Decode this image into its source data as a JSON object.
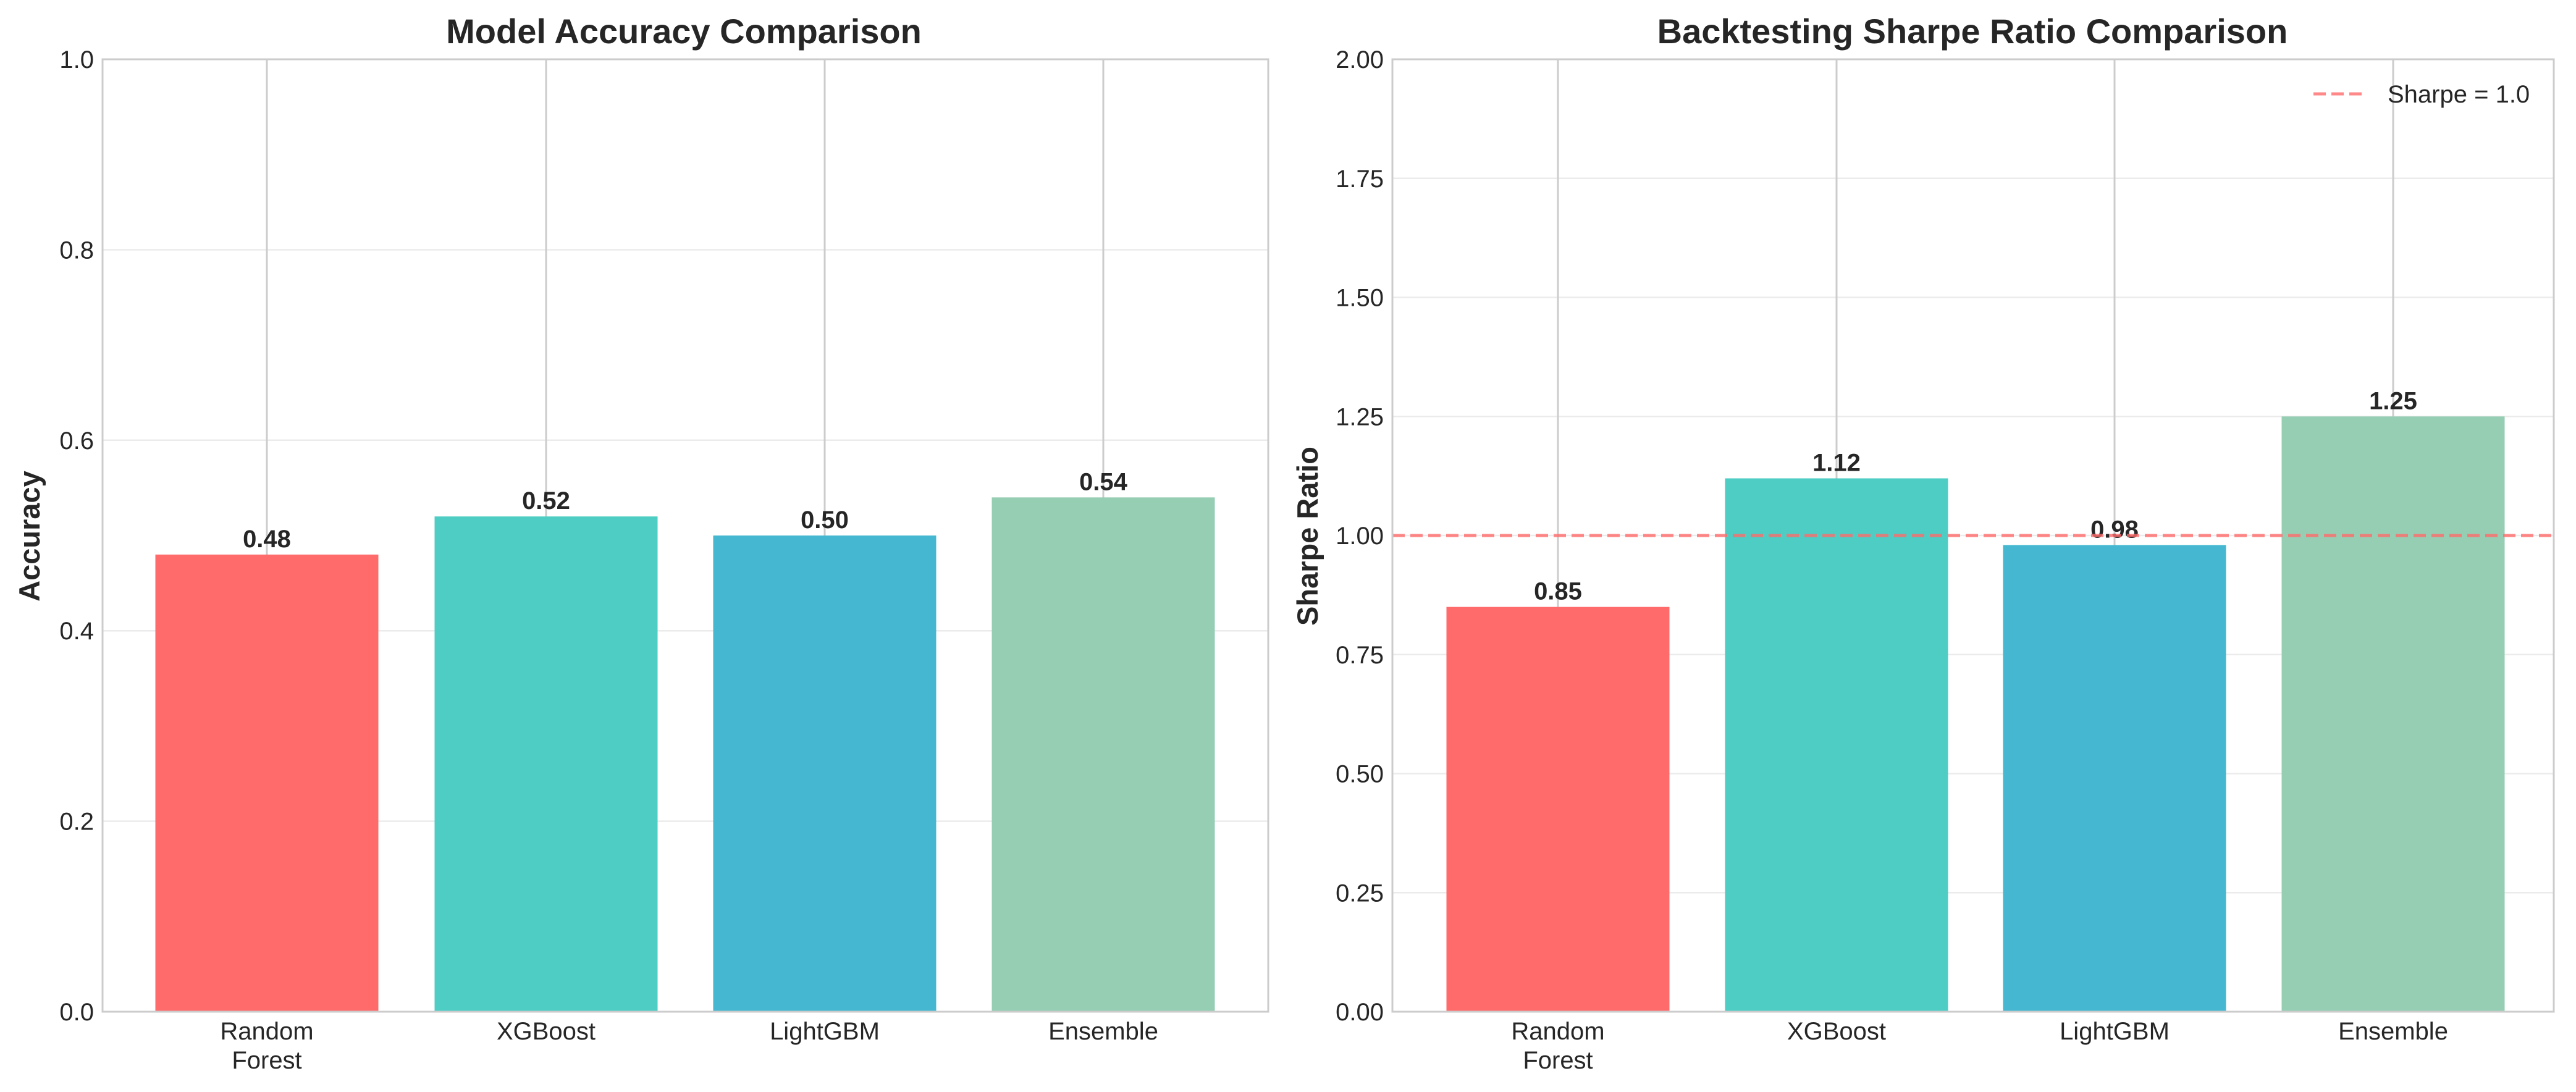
{
  "chart_data": [
    {
      "type": "bar",
      "title": "Model Accuracy Comparison",
      "xlabel": "",
      "ylabel": "Accuracy",
      "categories": [
        "Random Forest",
        "XGBoost",
        "LightGBM",
        "Ensemble"
      ],
      "category_lines": [
        [
          "Random",
          "Forest"
        ],
        [
          "XGBoost"
        ],
        [
          "LightGBM"
        ],
        [
          "Ensemble"
        ]
      ],
      "values": [
        0.48,
        0.52,
        0.5,
        0.54
      ],
      "value_labels": [
        "0.48",
        "0.52",
        "0.50",
        "0.54"
      ],
      "colors": [
        "#FF6B6B",
        "#4ECDC4",
        "#45B7D1",
        "#96CEB4"
      ],
      "ylim": [
        0,
        1
      ],
      "yticks": [
        0,
        0.2,
        0.4,
        0.6,
        0.8,
        1.0
      ],
      "ytick_labels": [
        "0.0",
        "0.2",
        "0.4",
        "0.6",
        "0.8",
        "1.0"
      ],
      "grid": true
    },
    {
      "type": "bar",
      "title": "Backtesting Sharpe Ratio Comparison",
      "xlabel": "",
      "ylabel": "Sharpe Ratio",
      "categories": [
        "Random Forest",
        "XGBoost",
        "LightGBM",
        "Ensemble"
      ],
      "category_lines": [
        [
          "Random",
          "Forest"
        ],
        [
          "XGBoost"
        ],
        [
          "LightGBM"
        ],
        [
          "Ensemble"
        ]
      ],
      "values": [
        0.85,
        1.12,
        0.98,
        1.25
      ],
      "value_labels": [
        "0.85",
        "1.12",
        "0.98",
        "1.25"
      ],
      "colors": [
        "#FF6B6B",
        "#4ECDC4",
        "#45B7D1",
        "#96CEB4"
      ],
      "ylim": [
        0,
        2
      ],
      "yticks": [
        0,
        0.25,
        0.5,
        0.75,
        1.0,
        1.25,
        1.5,
        1.75,
        2.0
      ],
      "ytick_labels": [
        "0.00",
        "0.25",
        "0.50",
        "0.75",
        "1.00",
        "1.25",
        "1.50",
        "1.75",
        "2.00"
      ],
      "grid": true,
      "reference_line": {
        "value": 1.0,
        "label": "Sharpe = 1.0",
        "color": "#FF6B6B",
        "style": "dashed"
      },
      "legend": {
        "placement": "top-right",
        "entries": [
          "Sharpe = 1.0"
        ]
      }
    }
  ]
}
